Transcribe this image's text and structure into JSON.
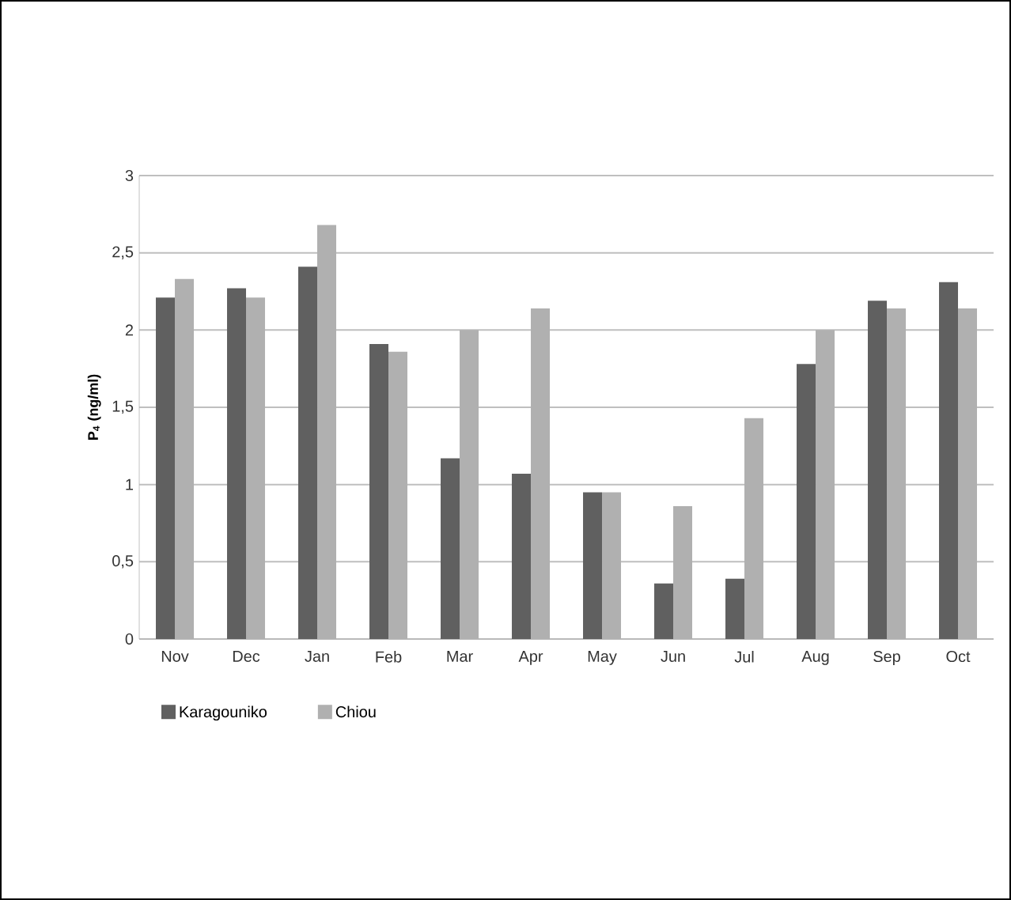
{
  "chart_data": {
    "type": "bar",
    "ylabel": "**P$_{4}$ (ng/ml)**",
    "categories": [
      "Nov",
      "Dec",
      "Jan",
      "Feb",
      "Mar",
      "Apr",
      "May",
      "Jun",
      "Jul",
      "Aug",
      "Sep",
      "Oct"
    ],
    "series": [
      {
        "name": "Karagouniko",
        "color": "#606060",
        "values": [
          2.21,
          2.27,
          2.41,
          1.91,
          1.17,
          1.07,
          0.95,
          0.36,
          0.39,
          1.78,
          2.19,
          2.31
        ]
      },
      {
        "name": "Chiou",
        "color": "#b0b0b0",
        "values": [
          2.33,
          2.21,
          2.68,
          1.86,
          2.0,
          2.14,
          0.95,
          0.86,
          1.43,
          2.0,
          2.14,
          2.14
        ]
      }
    ],
    "ylim": [
      0,
      3
    ],
    "yticks": [
      0,
      {
        "value": 0.5,
        "label": "0,5"
      },
      1,
      {
        "value": 1.5,
        "label": "1,5"
      },
      2,
      {
        "value": 2.5,
        "label": "2,5"
      },
      3
    ],
    "grid": "y",
    "legend": "bottom"
  }
}
